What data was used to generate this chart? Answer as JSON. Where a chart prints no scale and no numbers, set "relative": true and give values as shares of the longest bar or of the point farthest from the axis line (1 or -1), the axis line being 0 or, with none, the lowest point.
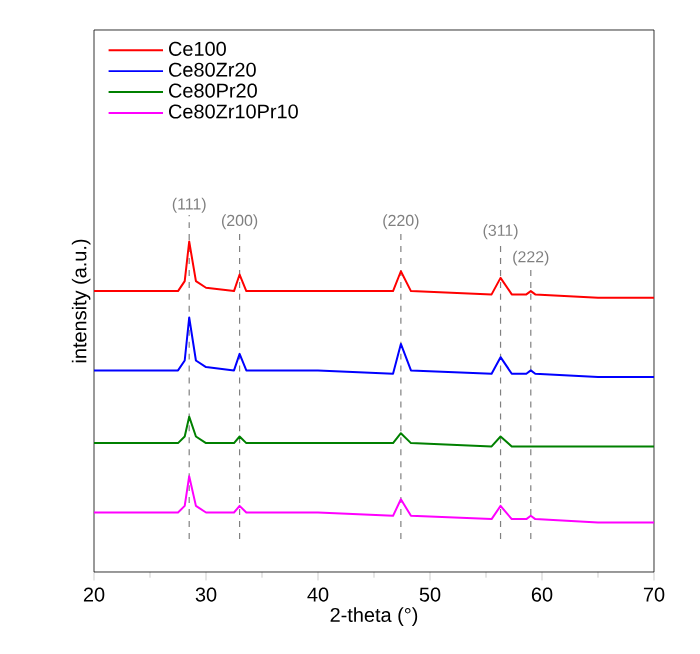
{
  "chart_data": {
    "type": "line",
    "relative": true,
    "xlabel": "2-theta (°)",
    "ylabel": "intensity (a.u.)",
    "xlim": [
      20,
      70
    ],
    "xticks": [
      20,
      30,
      40,
      50,
      60,
      70
    ],
    "x": [
      20,
      27.5,
      28.1,
      28.5,
      29.1,
      30,
      32.5,
      33,
      33.6,
      40,
      46.7,
      47.4,
      48.3,
      55.5,
      56.3,
      57.3,
      58.6,
      59,
      59.4,
      65,
      70
    ],
    "series": [
      {
        "name": "Ce100",
        "color": "#ff0000",
        "values": [
          0.85,
          0.85,
          0.88,
          1.0,
          0.88,
          0.86,
          0.85,
          0.9,
          0.85,
          0.85,
          0.85,
          0.91,
          0.85,
          0.84,
          0.89,
          0.84,
          0.84,
          0.85,
          0.84,
          0.83,
          0.83
        ]
      },
      {
        "name": "Ce80Zr20",
        "color": "#0000ff",
        "values": [
          0.61,
          0.61,
          0.64,
          0.77,
          0.64,
          0.62,
          0.61,
          0.66,
          0.61,
          0.61,
          0.6,
          0.69,
          0.61,
          0.6,
          0.65,
          0.6,
          0.6,
          0.61,
          0.6,
          0.59,
          0.59
        ]
      },
      {
        "name": "Ce80Pr20",
        "color": "#008000",
        "values": [
          0.39,
          0.39,
          0.41,
          0.47,
          0.41,
          0.39,
          0.39,
          0.41,
          0.39,
          0.39,
          0.39,
          0.42,
          0.39,
          0.38,
          0.41,
          0.38,
          0.38,
          0.38,
          0.38,
          0.38,
          0.38
        ]
      },
      {
        "name": "Ce80Zr10Pr10",
        "color": "#ff00ff",
        "values": [
          0.18,
          0.18,
          0.2,
          0.29,
          0.2,
          0.18,
          0.18,
          0.2,
          0.18,
          0.18,
          0.17,
          0.22,
          0.17,
          0.16,
          0.2,
          0.16,
          0.16,
          0.17,
          0.16,
          0.15,
          0.15
        ]
      }
    ],
    "ref_lines": [
      {
        "axis": "x",
        "value": 28.5,
        "color": "#808080",
        "line_style": "dashed"
      },
      {
        "axis": "x",
        "value": 33,
        "color": "#808080",
        "line_style": "dashed"
      },
      {
        "axis": "x",
        "value": 47.4,
        "color": "#808080",
        "line_style": "dashed"
      },
      {
        "axis": "x",
        "value": 56.3,
        "color": "#808080",
        "line_style": "dashed"
      },
      {
        "axis": "x",
        "value": 59,
        "color": "#808080",
        "line_style": "dashed"
      }
    ],
    "annotations": [
      {
        "text": "(111)",
        "x": 28.5,
        "y": 1.08
      },
      {
        "text": "(200)",
        "x": 33,
        "y": 1.03
      },
      {
        "text": "(220)",
        "x": 47.4,
        "y": 1.03
      },
      {
        "text": "(311)",
        "x": 56.3,
        "y": 1.0
      },
      {
        "text": "(222)",
        "x": 59,
        "y": 0.92
      }
    ],
    "legend": "top left"
  }
}
